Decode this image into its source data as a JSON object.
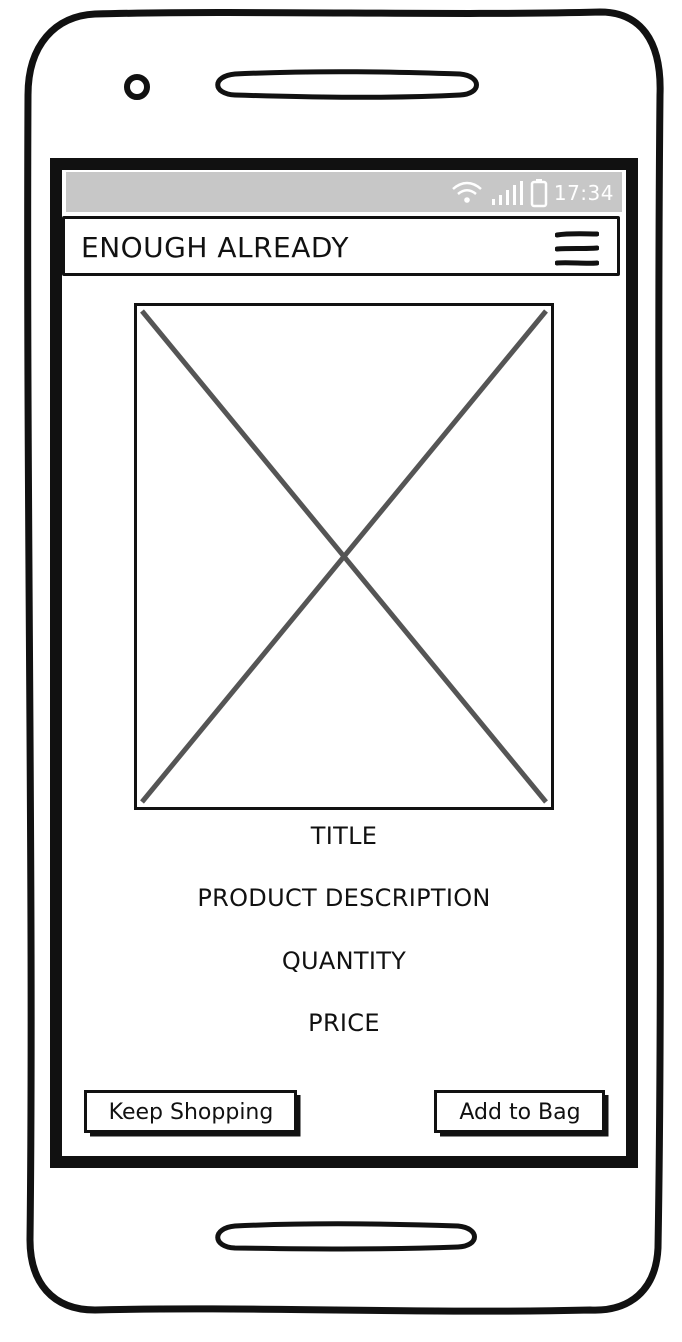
{
  "status_bar": {
    "time": "17:34",
    "icons": [
      "wifi-icon",
      "signal-icon",
      "battery-icon"
    ]
  },
  "header": {
    "title": "ENOUGH ALREADY",
    "menu_icon": "hamburger-menu-icon"
  },
  "product": {
    "image_icon": "image-placeholder-icon",
    "title": "TITLE",
    "description": "PRODUCT DESCRIPTION",
    "quantity": "QUANTITY",
    "price": "PRICE"
  },
  "actions": {
    "keep_shopping_label": "Keep Shopping",
    "add_to_bag_label": "Add to Bag"
  },
  "colors": {
    "status_bar": "#c7c7c7",
    "stroke": "#111111",
    "placeholder_cross": "#555555"
  }
}
